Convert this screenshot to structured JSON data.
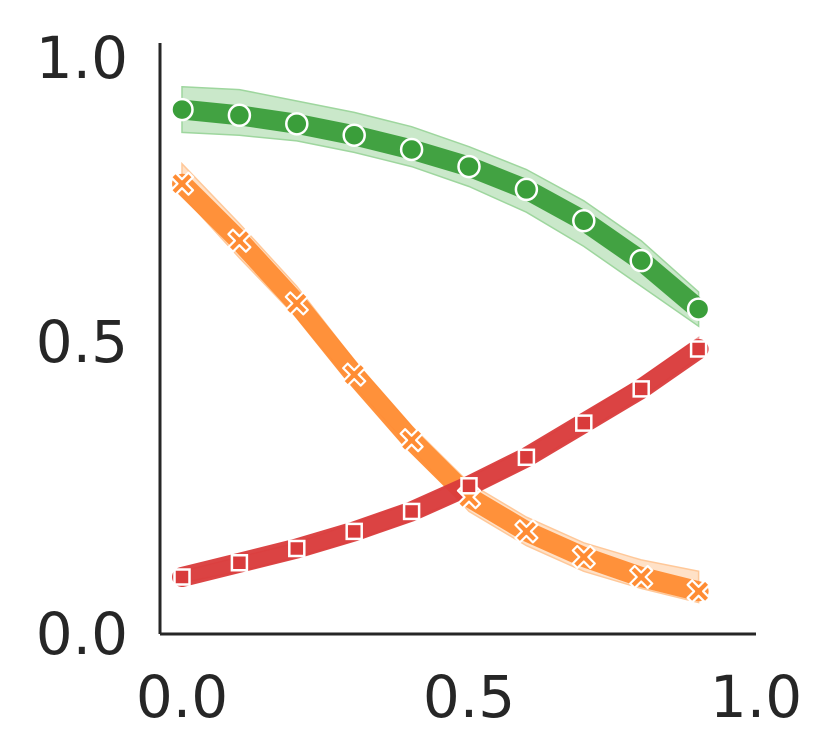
{
  "chart_data": {
    "type": "line",
    "title": "",
    "xlabel": "",
    "ylabel": "",
    "xlim": [
      0.0,
      1.0
    ],
    "ylim": [
      0.0,
      1.0
    ],
    "grid": false,
    "x_ticks": [
      "0.0",
      "0.5",
      "1.0"
    ],
    "y_ticks": [
      "0.0",
      "0.5",
      "1.0"
    ],
    "x": [
      0.0,
      0.1,
      0.2,
      0.3,
      0.4,
      0.5,
      0.6,
      0.7,
      0.8,
      0.9
    ],
    "series": [
      {
        "marker": "circle",
        "color": "#3a9e3a",
        "band_color": "#9ed69e",
        "values": [
          0.92,
          0.91,
          0.895,
          0.875,
          0.85,
          0.82,
          0.78,
          0.725,
          0.655,
          0.57
        ],
        "lower": [
          0.88,
          0.875,
          0.865,
          0.845,
          0.82,
          0.785,
          0.74,
          0.68,
          0.61,
          0.54
        ],
        "upper": [
          0.96,
          0.955,
          0.935,
          0.915,
          0.89,
          0.855,
          0.815,
          0.76,
          0.69,
          0.6
        ]
      },
      {
        "marker": "x",
        "color": "#ff8c33",
        "band_color": "#ffc899",
        "values": [
          0.79,
          0.69,
          0.58,
          0.455,
          0.34,
          0.24,
          0.18,
          0.135,
          0.1,
          0.075
        ],
        "lower": [
          0.77,
          0.66,
          0.555,
          0.435,
          0.325,
          0.215,
          0.155,
          0.11,
          0.08,
          0.055
        ],
        "upper": [
          0.825,
          0.72,
          0.61,
          0.48,
          0.365,
          0.265,
          0.205,
          0.16,
          0.13,
          0.11
        ]
      },
      {
        "marker": "square",
        "color": "#d93b3b",
        "band_color": "#f0a0a0",
        "values": [
          0.1,
          0.125,
          0.15,
          0.18,
          0.215,
          0.26,
          0.31,
          0.37,
          0.43,
          0.5
        ],
        "lower": [
          0.09,
          0.11,
          0.135,
          0.165,
          0.2,
          0.245,
          0.295,
          0.355,
          0.415,
          0.485
        ],
        "upper": [
          0.11,
          0.135,
          0.16,
          0.195,
          0.23,
          0.275,
          0.325,
          0.385,
          0.45,
          0.52
        ]
      }
    ]
  }
}
